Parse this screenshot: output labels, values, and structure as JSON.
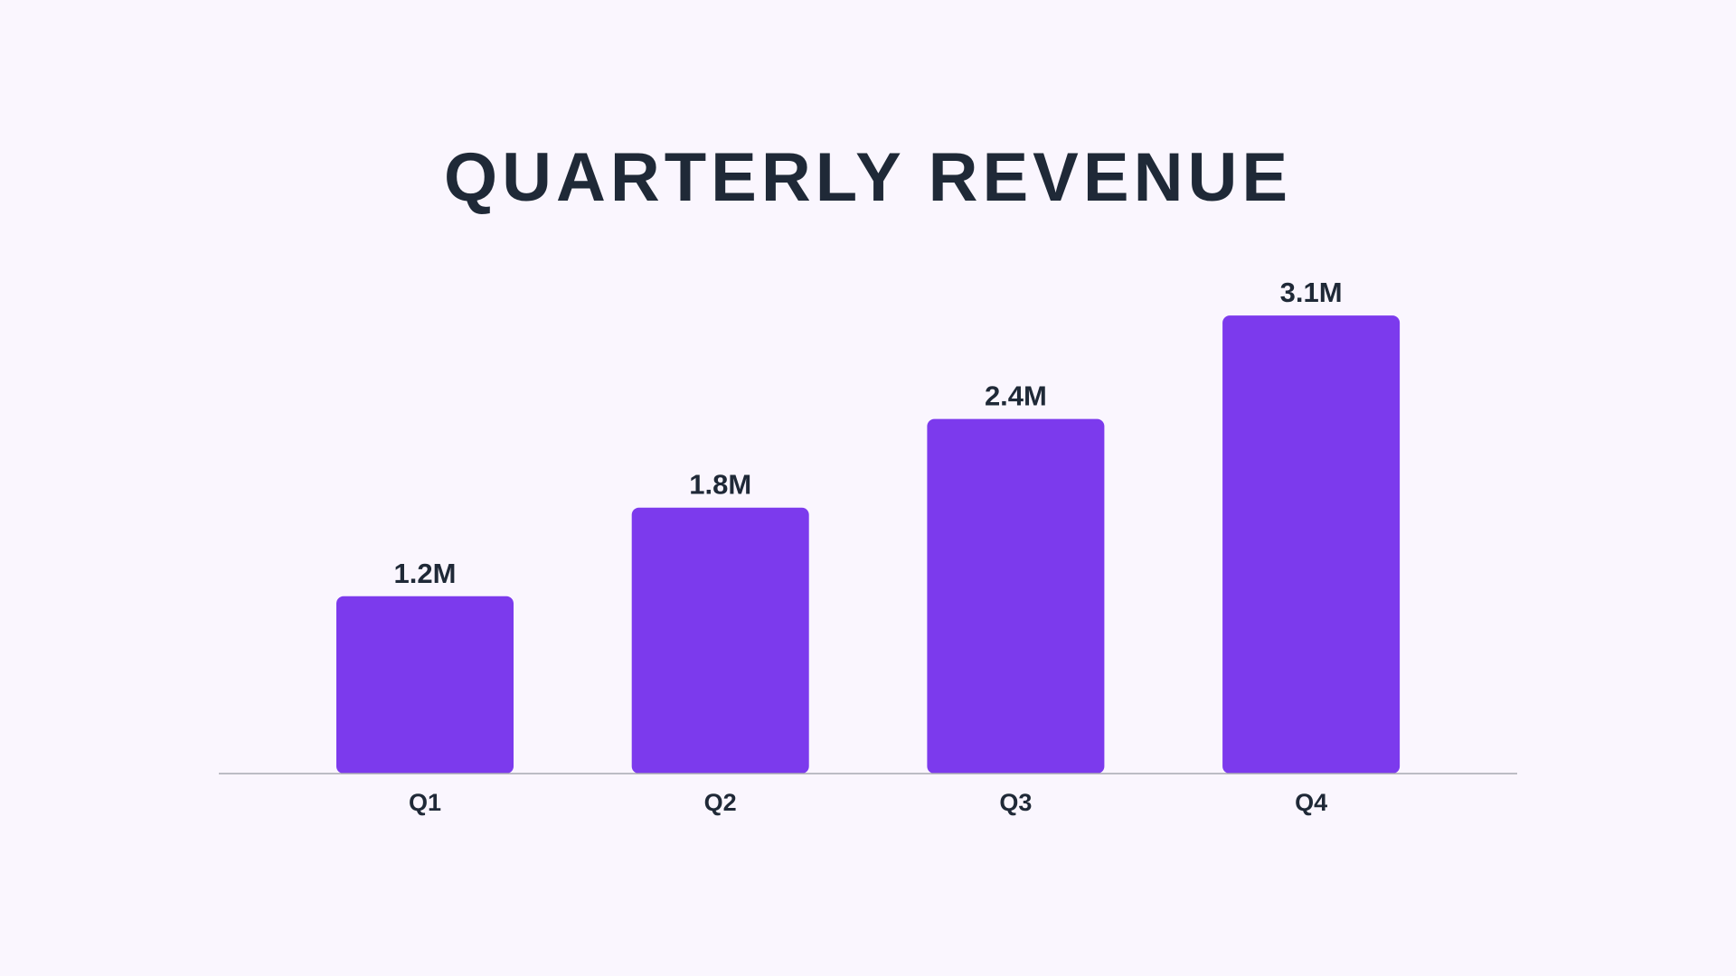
{
  "chart_data": {
    "type": "bar",
    "title": "QUARTERLY REVENUE",
    "categories": [
      "Q1",
      "Q2",
      "Q3",
      "Q4"
    ],
    "values": [
      1.2,
      1.8,
      2.4,
      3.1
    ],
    "data_labels": [
      "1.2M",
      "1.8M",
      "2.4M",
      "3.1M"
    ],
    "unit": "M",
    "xlabel": "",
    "ylabel": "",
    "ylim": [
      0,
      3.1
    ],
    "grid": false,
    "legend": "none",
    "colors": {
      "bar": "#7c3aed",
      "text": "#1f2937",
      "axis": "#a8a8b0",
      "background": "#faf6fe"
    }
  }
}
